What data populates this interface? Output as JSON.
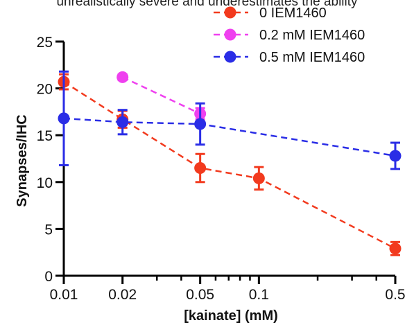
{
  "page": {
    "caption_fragment": "unrealistically severe and underestimates the ability"
  },
  "chart_data": {
    "type": "line",
    "xlabel": "[kainate] (mM)",
    "ylabel": "Synapses/IHC",
    "x_scale": "log",
    "xlim": [
      0.01,
      0.5
    ],
    "ylim": [
      0,
      25
    ],
    "x_ticks": [
      0.01,
      0.02,
      0.05,
      0.1,
      0.5
    ],
    "x_tick_labels": [
      "0.01",
      "0.02",
      "0.05",
      "0.1",
      "0.5"
    ],
    "y_ticks": [
      0,
      5,
      10,
      15,
      20,
      25
    ],
    "y_tick_labels": [
      "0",
      "5",
      "10",
      "15",
      "20",
      "25"
    ],
    "legend_position": "top-right",
    "grid": false,
    "series": [
      {
        "name": "0 IEM1460",
        "color": "#f23a1e",
        "x": [
          0.01,
          0.02,
          0.05,
          0.1,
          0.5
        ],
        "y": [
          20.7,
          16.7,
          11.5,
          10.4,
          2.9
        ],
        "err": [
          0.8,
          0.9,
          1.5,
          1.2,
          0.7
        ]
      },
      {
        "name": "0.2 mM IEM1460",
        "color": "#ef40ef",
        "x": [
          0.02,
          0.05
        ],
        "y": [
          21.2,
          17.3
        ],
        "err": [
          0.3,
          0.6
        ]
      },
      {
        "name": "0.5 mM IEM1460",
        "color": "#2a2de6",
        "x": [
          0.01,
          0.02,
          0.05,
          0.5
        ],
        "y": [
          16.8,
          16.4,
          16.2,
          12.8
        ],
        "err": [
          5.0,
          1.3,
          2.2,
          1.4
        ]
      }
    ]
  }
}
